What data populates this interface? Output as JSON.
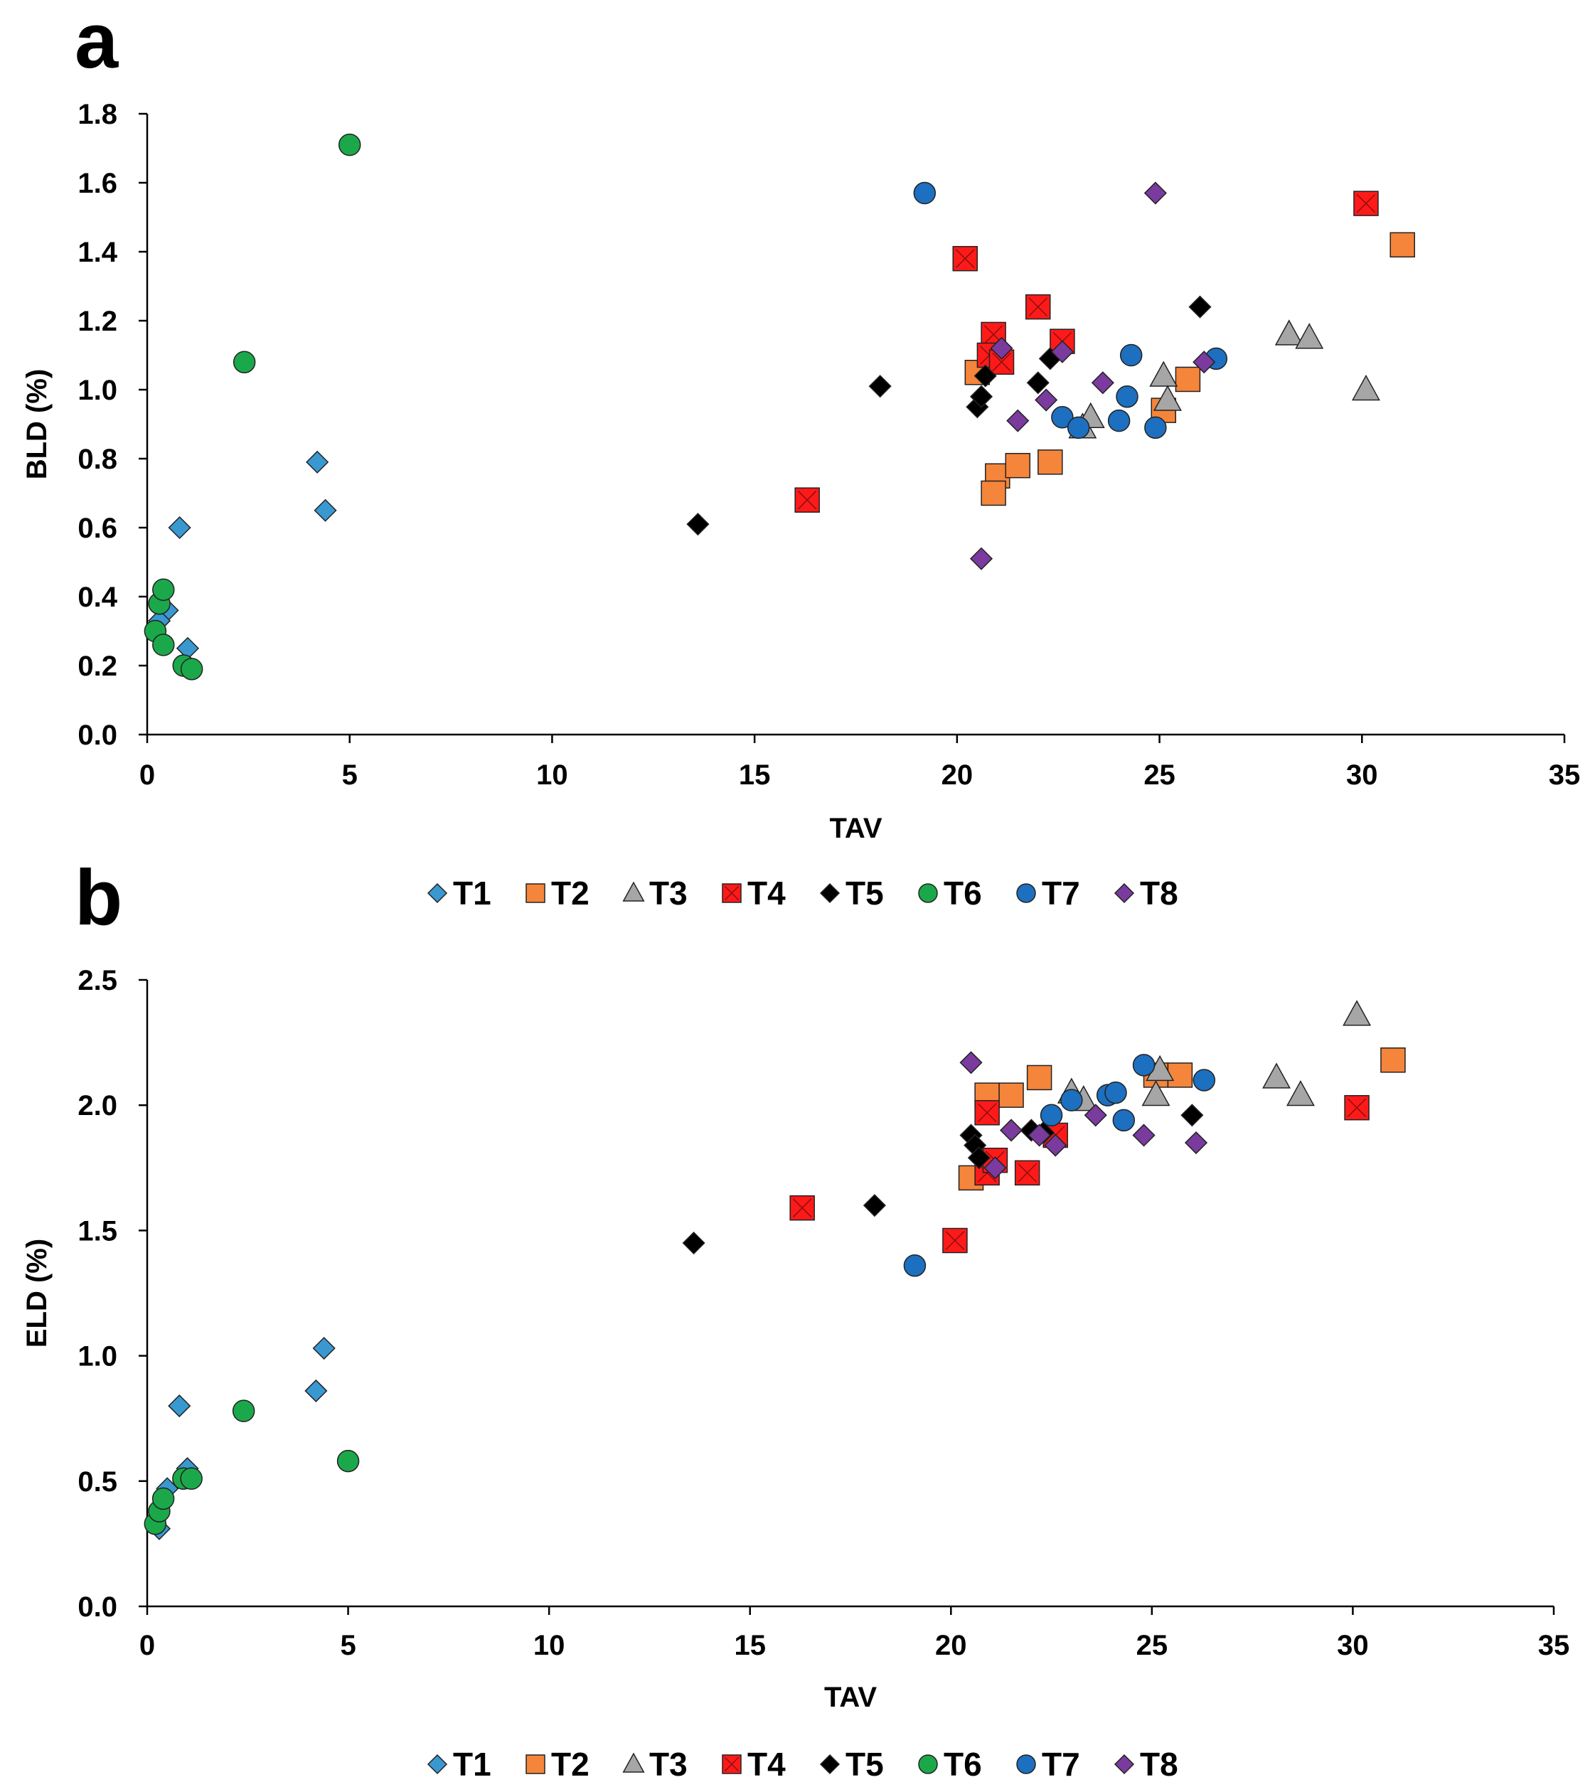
{
  "legend": {
    "entries": [
      {
        "key": "T1",
        "label": "T1",
        "marker": "diamond",
        "fill": "#3a98d1"
      },
      {
        "key": "T2",
        "label": "T2",
        "marker": "square",
        "fill": "#f5853a"
      },
      {
        "key": "T3",
        "label": "T3",
        "marker": "triangle",
        "fill": "#a6a6a6"
      },
      {
        "key": "T4",
        "label": "T4",
        "marker": "square-x",
        "fill": "#ff1a1a"
      },
      {
        "key": "T5",
        "label": "T5",
        "marker": "diamond",
        "fill": "#000000"
      },
      {
        "key": "T6",
        "label": "T6",
        "marker": "circle",
        "fill": "#1ba84a"
      },
      {
        "key": "T7",
        "label": "T7",
        "marker": "circle",
        "fill": "#1d6fc0"
      },
      {
        "key": "T8",
        "label": "T8",
        "marker": "diamond",
        "fill": "#7b3a9e"
      }
    ]
  },
  "chart_data": [
    {
      "panel": "a",
      "type": "scatter",
      "xlabel": "TAV",
      "ylabel": "BLD (%)",
      "xlim": [
        0,
        35
      ],
      "ylim": [
        0,
        1.8
      ],
      "xticks": [
        "0",
        "5",
        "10",
        "15",
        "20",
        "25",
        "30",
        "35"
      ],
      "yticks": [
        "0.0",
        "0.2",
        "0.4",
        "0.6",
        "0.8",
        "1.0",
        "1.2",
        "1.4",
        "1.6",
        "1.8"
      ],
      "series": [
        {
          "name": "T1",
          "points": [
            [
              0.5,
              0.36
            ],
            [
              0.3,
              0.33
            ],
            [
              1.0,
              0.25
            ],
            [
              0.8,
              0.6
            ],
            [
              4.2,
              0.79
            ],
            [
              4.4,
              0.65
            ]
          ]
        },
        {
          "name": "T2",
          "points": [
            [
              20.5,
              1.05
            ],
            [
              21.0,
              0.75
            ],
            [
              20.9,
              0.7
            ],
            [
              21.5,
              0.78
            ],
            [
              22.3,
              0.79
            ],
            [
              25.1,
              0.94
            ],
            [
              25.7,
              1.03
            ],
            [
              31.0,
              1.42
            ]
          ]
        },
        {
          "name": "T3",
          "points": [
            [
              23.1,
              0.89
            ],
            [
              23.3,
              0.92
            ],
            [
              25.1,
              1.04
            ],
            [
              25.2,
              0.97
            ],
            [
              28.2,
              1.16
            ],
            [
              28.7,
              1.15
            ],
            [
              30.1,
              1.0
            ]
          ]
        },
        {
          "name": "T4",
          "points": [
            [
              16.3,
              0.68
            ],
            [
              20.2,
              1.38
            ],
            [
              20.9,
              1.16
            ],
            [
              20.8,
              1.1
            ],
            [
              21.1,
              1.08
            ],
            [
              22.0,
              1.24
            ],
            [
              22.6,
              1.14
            ],
            [
              30.1,
              1.54
            ]
          ]
        },
        {
          "name": "T5",
          "points": [
            [
              13.6,
              0.61
            ],
            [
              18.1,
              1.01
            ],
            [
              20.5,
              0.95
            ],
            [
              20.6,
              0.98
            ],
            [
              20.7,
              1.04
            ],
            [
              22.0,
              1.02
            ],
            [
              22.3,
              1.09
            ],
            [
              26.0,
              1.24
            ]
          ]
        },
        {
          "name": "T6",
          "points": [
            [
              0.3,
              0.38
            ],
            [
              0.4,
              0.42
            ],
            [
              0.2,
              0.3
            ],
            [
              0.4,
              0.26
            ],
            [
              0.9,
              0.2
            ],
            [
              1.1,
              0.19
            ],
            [
              2.4,
              1.08
            ],
            [
              5.0,
              1.71
            ]
          ]
        },
        {
          "name": "T7",
          "points": [
            [
              19.2,
              1.57
            ],
            [
              22.6,
              0.92
            ],
            [
              23.0,
              0.89
            ],
            [
              24.0,
              0.91
            ],
            [
              24.2,
              0.98
            ],
            [
              24.9,
              0.89
            ],
            [
              24.3,
              1.1
            ],
            [
              26.4,
              1.09
            ]
          ]
        },
        {
          "name": "T8",
          "points": [
            [
              20.6,
              0.51
            ],
            [
              21.1,
              1.12
            ],
            [
              21.5,
              0.91
            ],
            [
              22.2,
              0.97
            ],
            [
              22.6,
              1.11
            ],
            [
              23.6,
              1.02
            ],
            [
              24.9,
              1.57
            ],
            [
              26.1,
              1.08
            ]
          ]
        }
      ]
    },
    {
      "panel": "b",
      "type": "scatter",
      "xlabel": "TAV",
      "ylabel": "ELD (%)",
      "xlim": [
        0,
        35
      ],
      "ylim": [
        0,
        2.5
      ],
      "xticks": [
        "0",
        "5",
        "10",
        "15",
        "20",
        "25",
        "30",
        "35"
      ],
      "yticks": [
        "0.0",
        "0.5",
        "1.0",
        "1.5",
        "2.0",
        "2.5"
      ],
      "series": [
        {
          "name": "T1",
          "points": [
            [
              0.3,
              0.31
            ],
            [
              0.5,
              0.47
            ],
            [
              1.0,
              0.55
            ],
            [
              0.8,
              0.8
            ],
            [
              4.2,
              0.86
            ],
            [
              4.4,
              1.03
            ]
          ]
        },
        {
          "name": "T2",
          "points": [
            [
              20.5,
              1.71
            ],
            [
              20.9,
              2.04
            ],
            [
              21.5,
              2.04
            ],
            [
              22.2,
              2.11
            ],
            [
              25.1,
              2.12
            ],
            [
              25.7,
              2.12
            ],
            [
              31.0,
              2.18
            ]
          ]
        },
        {
          "name": "T3",
          "points": [
            [
              23.0,
              2.05
            ],
            [
              23.3,
              2.02
            ],
            [
              25.1,
              2.04
            ],
            [
              25.2,
              2.14
            ],
            [
              28.1,
              2.11
            ],
            [
              28.7,
              2.04
            ],
            [
              30.1,
              2.36
            ]
          ]
        },
        {
          "name": "T4",
          "points": [
            [
              16.3,
              1.59
            ],
            [
              20.1,
              1.46
            ],
            [
              20.9,
              1.97
            ],
            [
              20.9,
              1.73
            ],
            [
              21.1,
              1.78
            ],
            [
              21.9,
              1.73
            ],
            [
              22.6,
              1.88
            ],
            [
              30.1,
              1.99
            ]
          ]
        },
        {
          "name": "T5",
          "points": [
            [
              13.6,
              1.45
            ],
            [
              18.1,
              1.6
            ],
            [
              20.5,
              1.88
            ],
            [
              20.6,
              1.84
            ],
            [
              20.7,
              1.79
            ],
            [
              22.0,
              1.9
            ],
            [
              22.3,
              1.89
            ],
            [
              26.0,
              1.96
            ]
          ]
        },
        {
          "name": "T6",
          "points": [
            [
              0.2,
              0.33
            ],
            [
              0.3,
              0.38
            ],
            [
              0.4,
              0.43
            ],
            [
              0.9,
              0.51
            ],
            [
              1.1,
              0.51
            ],
            [
              2.4,
              0.78
            ],
            [
              5.0,
              0.58
            ]
          ]
        },
        {
          "name": "T7",
          "points": [
            [
              19.1,
              1.36
            ],
            [
              22.5,
              1.96
            ],
            [
              23.0,
              2.02
            ],
            [
              23.9,
              2.04
            ],
            [
              24.1,
              2.05
            ],
            [
              24.3,
              1.94
            ],
            [
              24.8,
              2.16
            ],
            [
              26.3,
              2.1
            ]
          ]
        },
        {
          "name": "T8",
          "points": [
            [
              20.5,
              2.17
            ],
            [
              21.1,
              1.75
            ],
            [
              21.5,
              1.9
            ],
            [
              22.2,
              1.88
            ],
            [
              22.6,
              1.84
            ],
            [
              23.6,
              1.96
            ],
            [
              24.8,
              1.88
            ],
            [
              26.1,
              1.85
            ]
          ]
        }
      ]
    }
  ]
}
